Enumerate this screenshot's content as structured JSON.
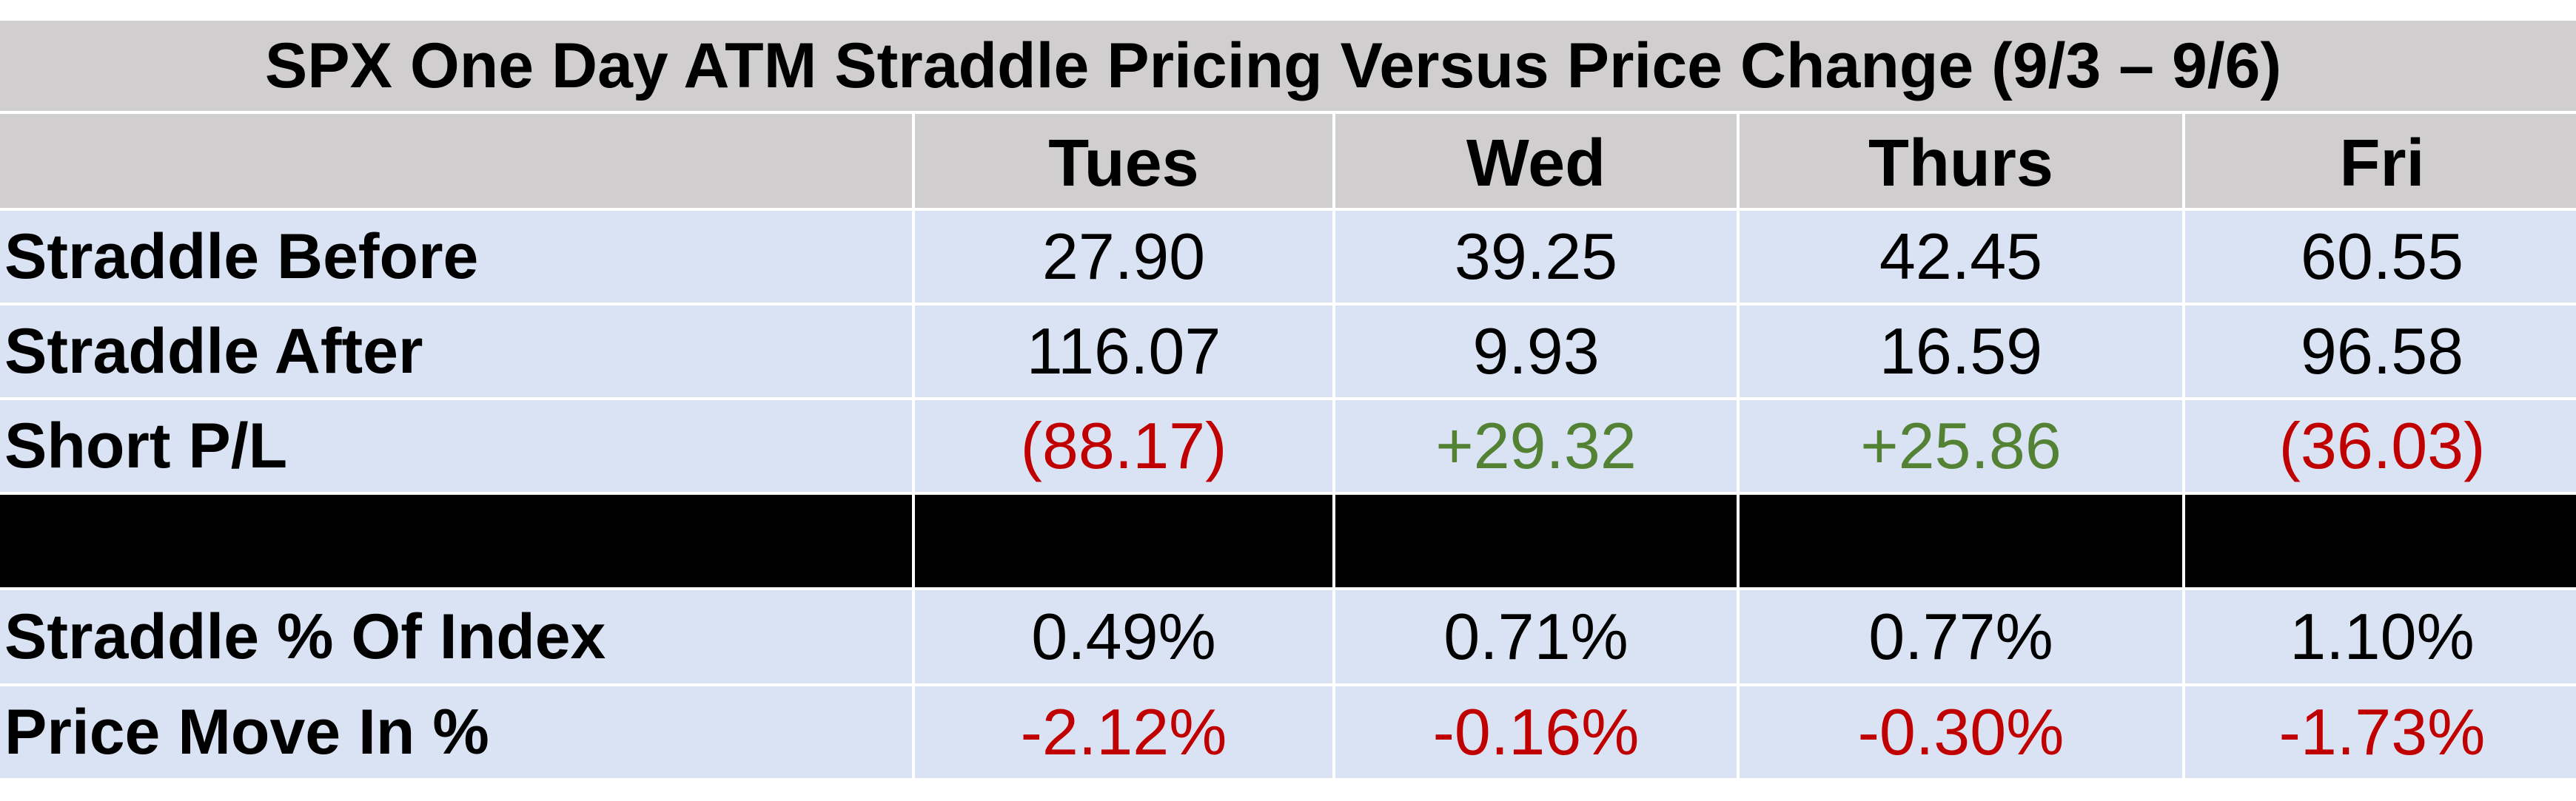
{
  "chart_data": {
    "type": "table",
    "title": "SPX One Day ATM Straddle Pricing Versus Price Change (9/3 – 9/6)",
    "columns": [
      "Tues",
      "Wed",
      "Thurs",
      "Fri"
    ],
    "rows": [
      {
        "label": "Straddle Before",
        "values": [
          "27.90",
          "39.25",
          "42.45",
          "60.55"
        ],
        "colors": [
          "#000000",
          "#000000",
          "#000000",
          "#000000"
        ]
      },
      {
        "label": "Straddle After",
        "values": [
          "116.07",
          "9.93",
          "16.59",
          "96.58"
        ],
        "colors": [
          "#000000",
          "#000000",
          "#000000",
          "#000000"
        ]
      },
      {
        "label": "Short P/L",
        "values": [
          "(88.17)",
          "+29.32",
          "+25.86",
          "(36.03)"
        ],
        "colors": [
          "#c00000",
          "#548235",
          "#548235",
          "#c00000"
        ]
      },
      {
        "label": "",
        "values": [
          "",
          "",
          "",
          ""
        ],
        "separator": true
      },
      {
        "label": "Straddle % Of Index",
        "values": [
          "0.49%",
          "0.71%",
          "0.77%",
          "1.10%"
        ],
        "colors": [
          "#000000",
          "#000000",
          "#000000",
          "#000000"
        ]
      },
      {
        "label": "Price Move In %",
        "values": [
          "-2.12%",
          "-0.16%",
          "-0.30%",
          "-1.73%"
        ],
        "colors": [
          "#c00000",
          "#c00000",
          "#c00000",
          "#c00000"
        ]
      }
    ]
  },
  "colors": {
    "header_bg": "#d0cece",
    "row_bg": "#dae3f3",
    "separator_bg": "#000000",
    "negative": "#c00000",
    "positive": "#548235"
  }
}
